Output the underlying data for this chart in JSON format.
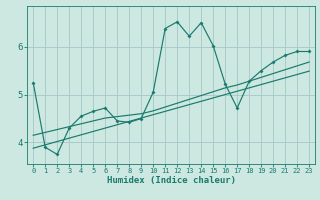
{
  "title": "",
  "xlabel": "Humidex (Indice chaleur)",
  "bg_color": "#cce8e0",
  "grid_color": "#aacccc",
  "line_color": "#1a7a6e",
  "x_data": [
    0,
    1,
    2,
    3,
    4,
    5,
    6,
    7,
    8,
    9,
    10,
    11,
    12,
    13,
    14,
    15,
    16,
    17,
    18,
    19,
    20,
    21,
    22,
    23
  ],
  "y_main": [
    5.25,
    3.9,
    3.75,
    4.3,
    4.55,
    4.65,
    4.72,
    4.45,
    4.42,
    4.5,
    5.05,
    6.38,
    6.52,
    6.22,
    6.5,
    6.02,
    5.22,
    4.72,
    5.28,
    5.5,
    5.68,
    5.82,
    5.9,
    5.9
  ],
  "y_trend1": [
    3.88,
    3.95,
    4.02,
    4.09,
    4.16,
    4.23,
    4.3,
    4.37,
    4.44,
    4.51,
    4.58,
    4.65,
    4.72,
    4.79,
    4.86,
    4.93,
    5.0,
    5.07,
    5.14,
    5.21,
    5.28,
    5.35,
    5.42,
    5.49
  ],
  "y_trend2": [
    4.15,
    4.21,
    4.27,
    4.33,
    4.39,
    4.45,
    4.51,
    4.54,
    4.57,
    4.6,
    4.66,
    4.74,
    4.82,
    4.9,
    4.98,
    5.06,
    5.14,
    5.2,
    5.28,
    5.36,
    5.44,
    5.52,
    5.6,
    5.68
  ],
  "xlim": [
    -0.5,
    23.5
  ],
  "ylim": [
    3.55,
    6.85
  ],
  "yticks": [
    4,
    5,
    6
  ],
  "xticks": [
    0,
    1,
    2,
    3,
    4,
    5,
    6,
    7,
    8,
    9,
    10,
    11,
    12,
    13,
    14,
    15,
    16,
    17,
    18,
    19,
    20,
    21,
    22,
    23
  ]
}
